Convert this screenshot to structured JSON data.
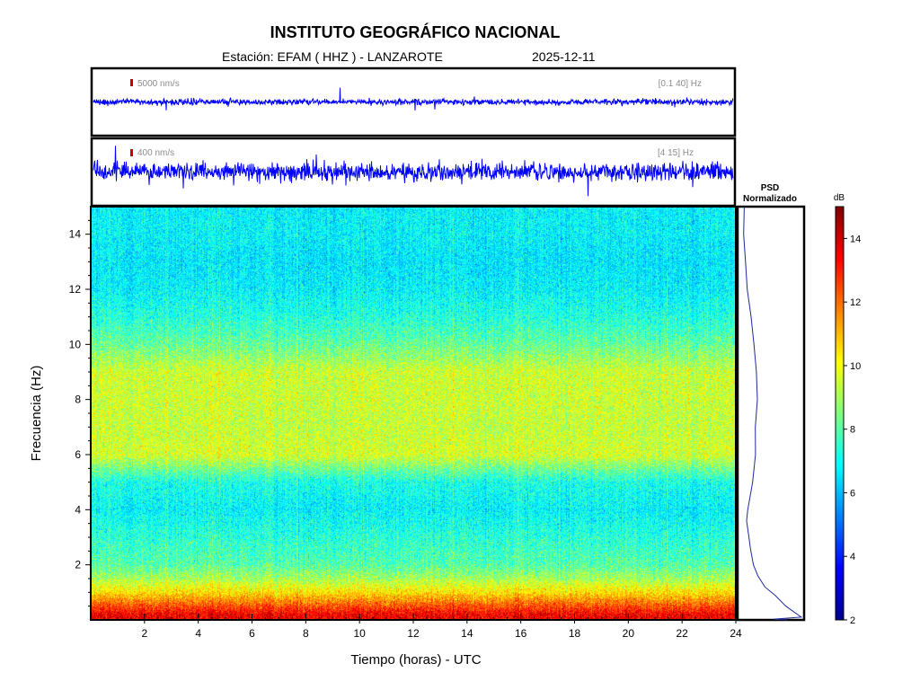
{
  "header": {
    "title": "INSTITUTO GEOGRÁFICO NACIONAL",
    "station_label": "Estación:",
    "station": "EFAM ( HHZ ) - LANZAROTE",
    "date": "2025-12-11"
  },
  "colors": {
    "trace": "#0000ff",
    "scale_marker": "#cc0000",
    "annotation": "#8c8c8c",
    "psd_line": "#1f2a9a"
  },
  "seismograms": [
    {
      "scale_label": "5000 nm/s",
      "band_label": "[0.1 40] Hz",
      "amplitude": 0.12
    },
    {
      "scale_label": "400 nm/s",
      "band_label": "[4 15] Hz",
      "amplitude": 0.35
    }
  ],
  "chart_data": [
    {
      "type": "heatmap",
      "title": "",
      "xlabel": "Tiempo (horas) - UTC",
      "ylabel": "Frecuencia  (Hz)",
      "xlim": [
        0,
        24
      ],
      "ylim": [
        0,
        15
      ],
      "x_ticks": [
        2,
        4,
        6,
        8,
        10,
        12,
        14,
        16,
        18,
        20,
        22,
        24
      ],
      "y_ticks": [
        2,
        4,
        6,
        8,
        10,
        12,
        14
      ],
      "colorbar": {
        "label": "dB",
        "range": [
          2,
          15
        ],
        "ticks": [
          2,
          4,
          6,
          8,
          10,
          12,
          14
        ]
      },
      "frequency_profile_db": [
        {
          "hz": 0.2,
          "db": 13.5
        },
        {
          "hz": 0.6,
          "db": 12.0
        },
        {
          "hz": 1.0,
          "db": 10.5
        },
        {
          "hz": 1.5,
          "db": 9.0
        },
        {
          "hz": 2.0,
          "db": 8.0
        },
        {
          "hz": 3.0,
          "db": 7.4
        },
        {
          "hz": 4.0,
          "db": 6.8
        },
        {
          "hz": 5.0,
          "db": 7.2
        },
        {
          "hz": 6.0,
          "db": 9.6
        },
        {
          "hz": 7.0,
          "db": 9.4
        },
        {
          "hz": 8.0,
          "db": 9.5
        },
        {
          "hz": 9.0,
          "db": 9.5
        },
        {
          "hz": 10.0,
          "db": 8.2
        },
        {
          "hz": 11.0,
          "db": 7.3
        },
        {
          "hz": 12.0,
          "db": 6.8
        },
        {
          "hz": 13.0,
          "db": 6.6
        },
        {
          "hz": 14.0,
          "db": 6.8
        },
        {
          "hz": 15.0,
          "db": 6.8
        }
      ]
    },
    {
      "type": "line",
      "title": "PSD Normalizado",
      "title_lines": [
        "PSD",
        "Normalizado"
      ],
      "xlim": [
        0,
        1
      ],
      "ylim": [
        0,
        15
      ],
      "x": [
        0.1,
        0.1,
        0.11,
        0.15,
        0.2,
        0.25,
        0.28,
        0.29,
        0.27,
        0.26,
        0.22,
        0.15,
        0.14,
        0.17,
        0.19,
        0.24,
        0.3,
        0.42,
        0.55,
        0.72,
        0.95,
        0.55,
        0.75
      ],
      "y": [
        15.0,
        14.0,
        13.0,
        12.0,
        11.0,
        10.0,
        9.0,
        8.0,
        7.0,
        6.0,
        5.0,
        4.0,
        3.6,
        3.0,
        2.6,
        2.0,
        1.6,
        1.2,
        0.9,
        0.5,
        0.1,
        0.03,
        0.0
      ]
    }
  ]
}
